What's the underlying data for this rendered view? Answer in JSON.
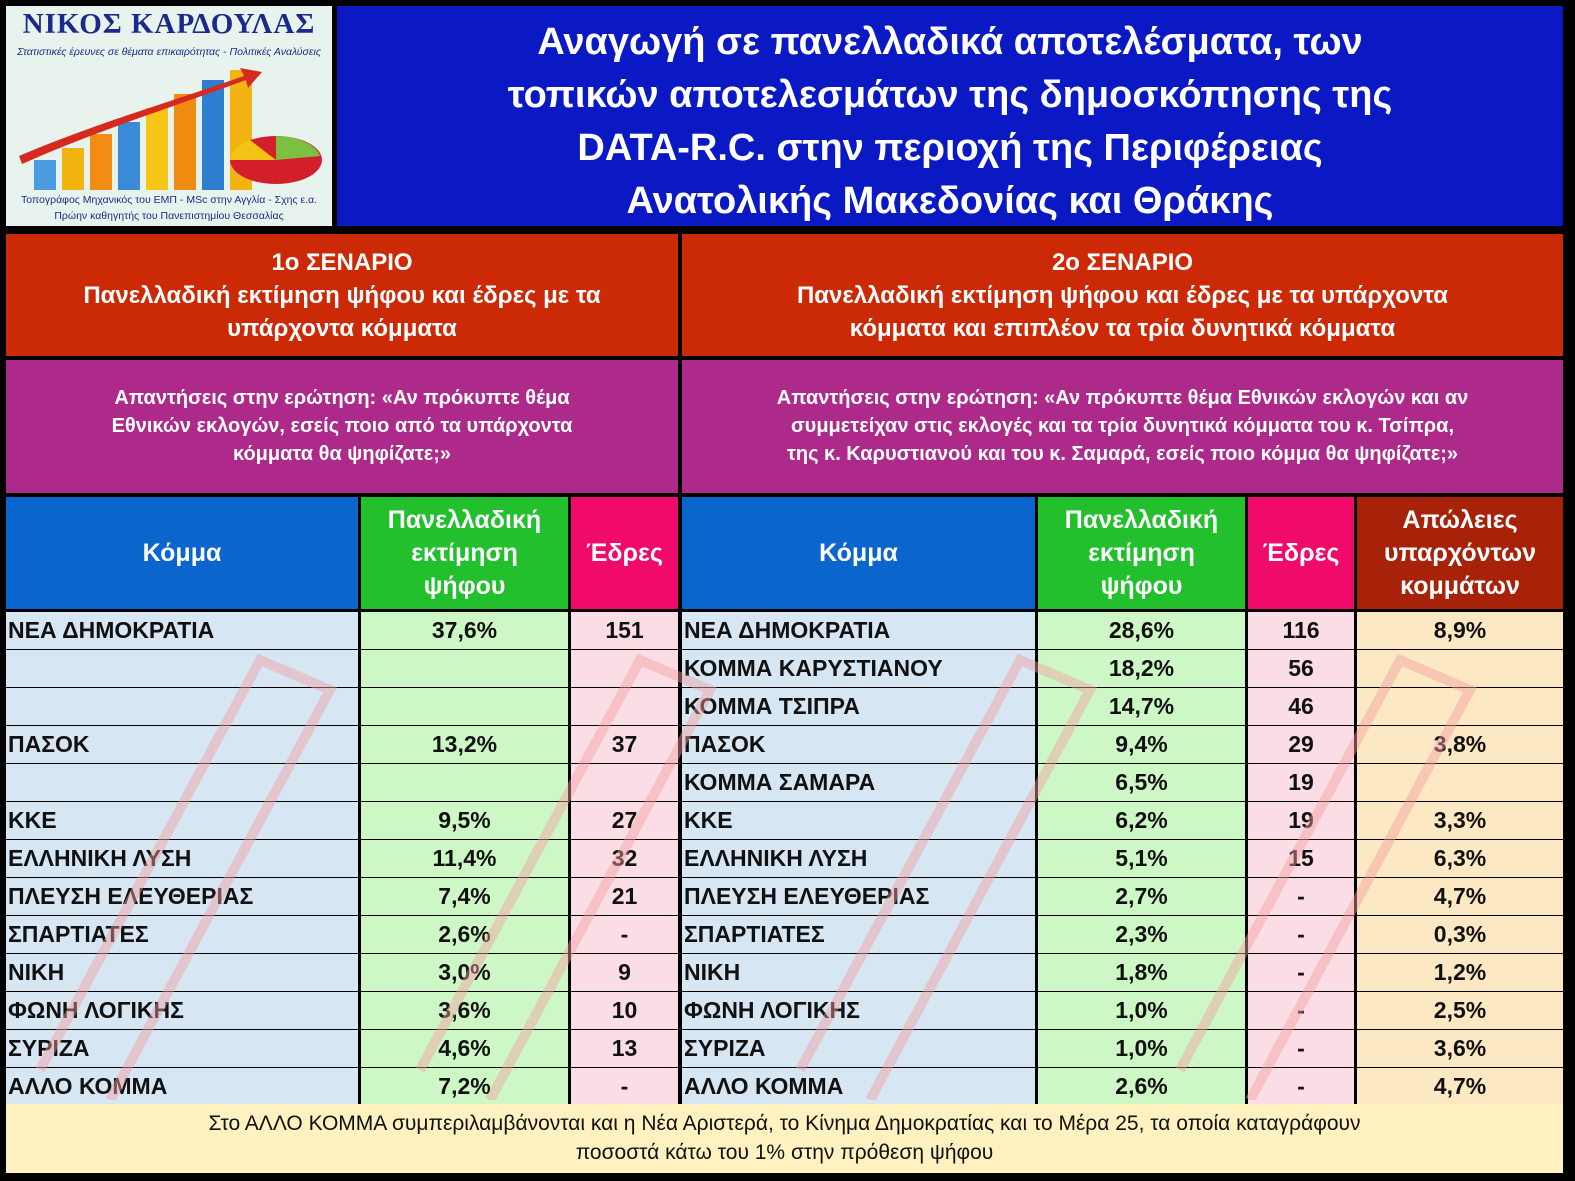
{
  "logo": {
    "name": "ΝΙΚΟΣ ΚΑΡΔΟΥΛΑΣ",
    "subtitle": "Στατιστικές έρευνες σε θέματα επικαιρότητας - Πολιτικές Αναλύσεις",
    "line1": "Τοπογράφος Μηχανικός του ΕΜΠ - MSc στην Αγγλία - Σχης ε.α.",
    "line2": "Πρώην καθηγητής του Πανεπιστημίου Θεσσαλίας"
  },
  "title": {
    "line1": "Αναγωγή σε πανελλαδικά αποτελέσματα, των",
    "line2": "τοπικών αποτελεσμάτων της δημοσκόπησης της",
    "line3": "DATA-R.C. στην περιοχή της Περιφέρειας",
    "line4": "Ανατολικής Μακεδονίας και Θράκης"
  },
  "scenario1": {
    "heading": "1ο ΣΕΝΑΡΙΟ",
    "desc1": "Πανελλαδική εκτίμηση ψήφου και έδρες με τα",
    "desc2": "υπάρχοντα κόμματα",
    "q1": "Απαντήσεις στην ερώτηση: «Αν πρόκυπτε θέμα",
    "q2": "Εθνικών εκλογών, εσείς ποιο από τα υπάρχοντα",
    "q3": "κόμματα θα ψηφίζατε;»"
  },
  "scenario2": {
    "heading": "2ο ΣΕΝΑΡΙΟ",
    "desc1": "Πανελλαδική εκτίμηση ψήφου και έδρες με τα υπάρχοντα",
    "desc2": "κόμματα και επιπλέον τα τρία δυνητικά κόμματα",
    "q1": "Απαντήσεις στην ερώτηση: «Αν πρόκυπτε θέμα Εθνικών εκλογών και αν",
    "q2": "συμμετείχαν στις εκλογές και τα τρία δυνητικά κόμματα του κ. Τσίπρα,",
    "q3": "της κ. Καρυστιανού και του κ. Σαμαρά, εσείς ποιο κόμμα θα ψηφίζατε;»"
  },
  "headers": {
    "party": "Κόμμα",
    "vote1": "Πανελλαδική",
    "vote2": "εκτίμηση",
    "vote3": "ψήφου",
    "seats": "Έδρες",
    "loss1": "Απώλειες",
    "loss2": "υπαρχόντων",
    "loss3": "κομμάτων"
  },
  "table1": [
    {
      "party": "ΝΕΑ ΔΗΜΟΚΡΑΤΙΑ",
      "vote": "37,6%",
      "seats": "151"
    },
    {
      "party": "",
      "vote": "",
      "seats": ""
    },
    {
      "party": "",
      "vote": "",
      "seats": ""
    },
    {
      "party": "ΠΑΣΟΚ",
      "vote": "13,2%",
      "seats": "37"
    },
    {
      "party": "",
      "vote": "",
      "seats": ""
    },
    {
      "party": "ΚΚΕ",
      "vote": "9,5%",
      "seats": "27"
    },
    {
      "party": "ΕΛΛΗΝΙΚΗ ΛΥΣΗ",
      "vote": "11,4%",
      "seats": "32"
    },
    {
      "party": "ΠΛΕΥΣΗ ΕΛΕΥΘΕΡΙΑΣ",
      "vote": "7,4%",
      "seats": "21"
    },
    {
      "party": "ΣΠΑΡΤΙΑΤΕΣ",
      "vote": "2,6%",
      "seats": "-"
    },
    {
      "party": "ΝΙΚΗ",
      "vote": "3,0%",
      "seats": "9"
    },
    {
      "party": "ΦΩΝΗ ΛΟΓΙΚΗΣ",
      "vote": "3,6%",
      "seats": "10"
    },
    {
      "party": "ΣΥΡΙΖΑ",
      "vote": "4,6%",
      "seats": "13"
    },
    {
      "party": "ΑΛΛΟ ΚΟΜΜΑ",
      "vote": "7,2%",
      "seats": "-"
    }
  ],
  "table2": [
    {
      "party": "ΝΕΑ ΔΗΜΟΚΡΑΤΙΑ",
      "vote": "28,6%",
      "seats": "116",
      "loss": "8,9%"
    },
    {
      "party": "ΚΟΜΜΑ ΚΑΡΥΣΤΙΑΝΟΥ",
      "vote": "18,2%",
      "seats": "56",
      "loss": ""
    },
    {
      "party": "ΚΟΜΜΑ ΤΣΙΠΡΑ",
      "vote": "14,7%",
      "seats": "46",
      "loss": ""
    },
    {
      "party": "ΠΑΣΟΚ",
      "vote": "9,4%",
      "seats": "29",
      "loss": "3,8%"
    },
    {
      "party": "ΚΟΜΜΑ ΣΑΜΑΡΑ",
      "vote": "6,5%",
      "seats": "19",
      "loss": ""
    },
    {
      "party": "ΚΚΕ",
      "vote": "6,2%",
      "seats": "19",
      "loss": "3,3%"
    },
    {
      "party": "ΕΛΛΗΝΙΚΗ ΛΥΣΗ",
      "vote": "5,1%",
      "seats": "15",
      "loss": "6,3%"
    },
    {
      "party": "ΠΛΕΥΣΗ ΕΛΕΥΘΕΡΙΑΣ",
      "vote": "2,7%",
      "seats": "-",
      "loss": "4,7%"
    },
    {
      "party": "ΣΠΑΡΤΙΑΤΕΣ",
      "vote": "2,3%",
      "seats": "-",
      "loss": "0,3%"
    },
    {
      "party": "ΝΙΚΗ",
      "vote": "1,8%",
      "seats": "-",
      "loss": "1,2%"
    },
    {
      "party": "ΦΩΝΗ ΛΟΓΙΚΗΣ",
      "vote": "1,0%",
      "seats": "-",
      "loss": "2,5%"
    },
    {
      "party": "ΣΥΡΙΖΑ",
      "vote": "1,0%",
      "seats": "-",
      "loss": "3,6%"
    },
    {
      "party": "ΑΛΛΟ ΚΟΜΜΑ",
      "vote": "2,6%",
      "seats": "-",
      "loss": "4,7%"
    }
  ],
  "footer": {
    "line1": "Στο ΑΛΛΟ ΚΟΜΜΑ συμπεριλαμβάνονται και η Νέα Αριστερά, το Κίνημα Δημοκρατίας και το Μέρα 25, τα οποία καταγράφουν",
    "line2": "ποσοστά κάτω του 1% στην πρόθεση ψήφου"
  },
  "colors": {
    "title_bg": "#0a19c4",
    "scenario_bg": "#cc2a06",
    "question_bg": "#ad2a8a",
    "party_header": "#0a66cc",
    "vote_header": "#21c02c",
    "seats_header": "#f00a6a",
    "loss_header": "#a8220a"
  }
}
